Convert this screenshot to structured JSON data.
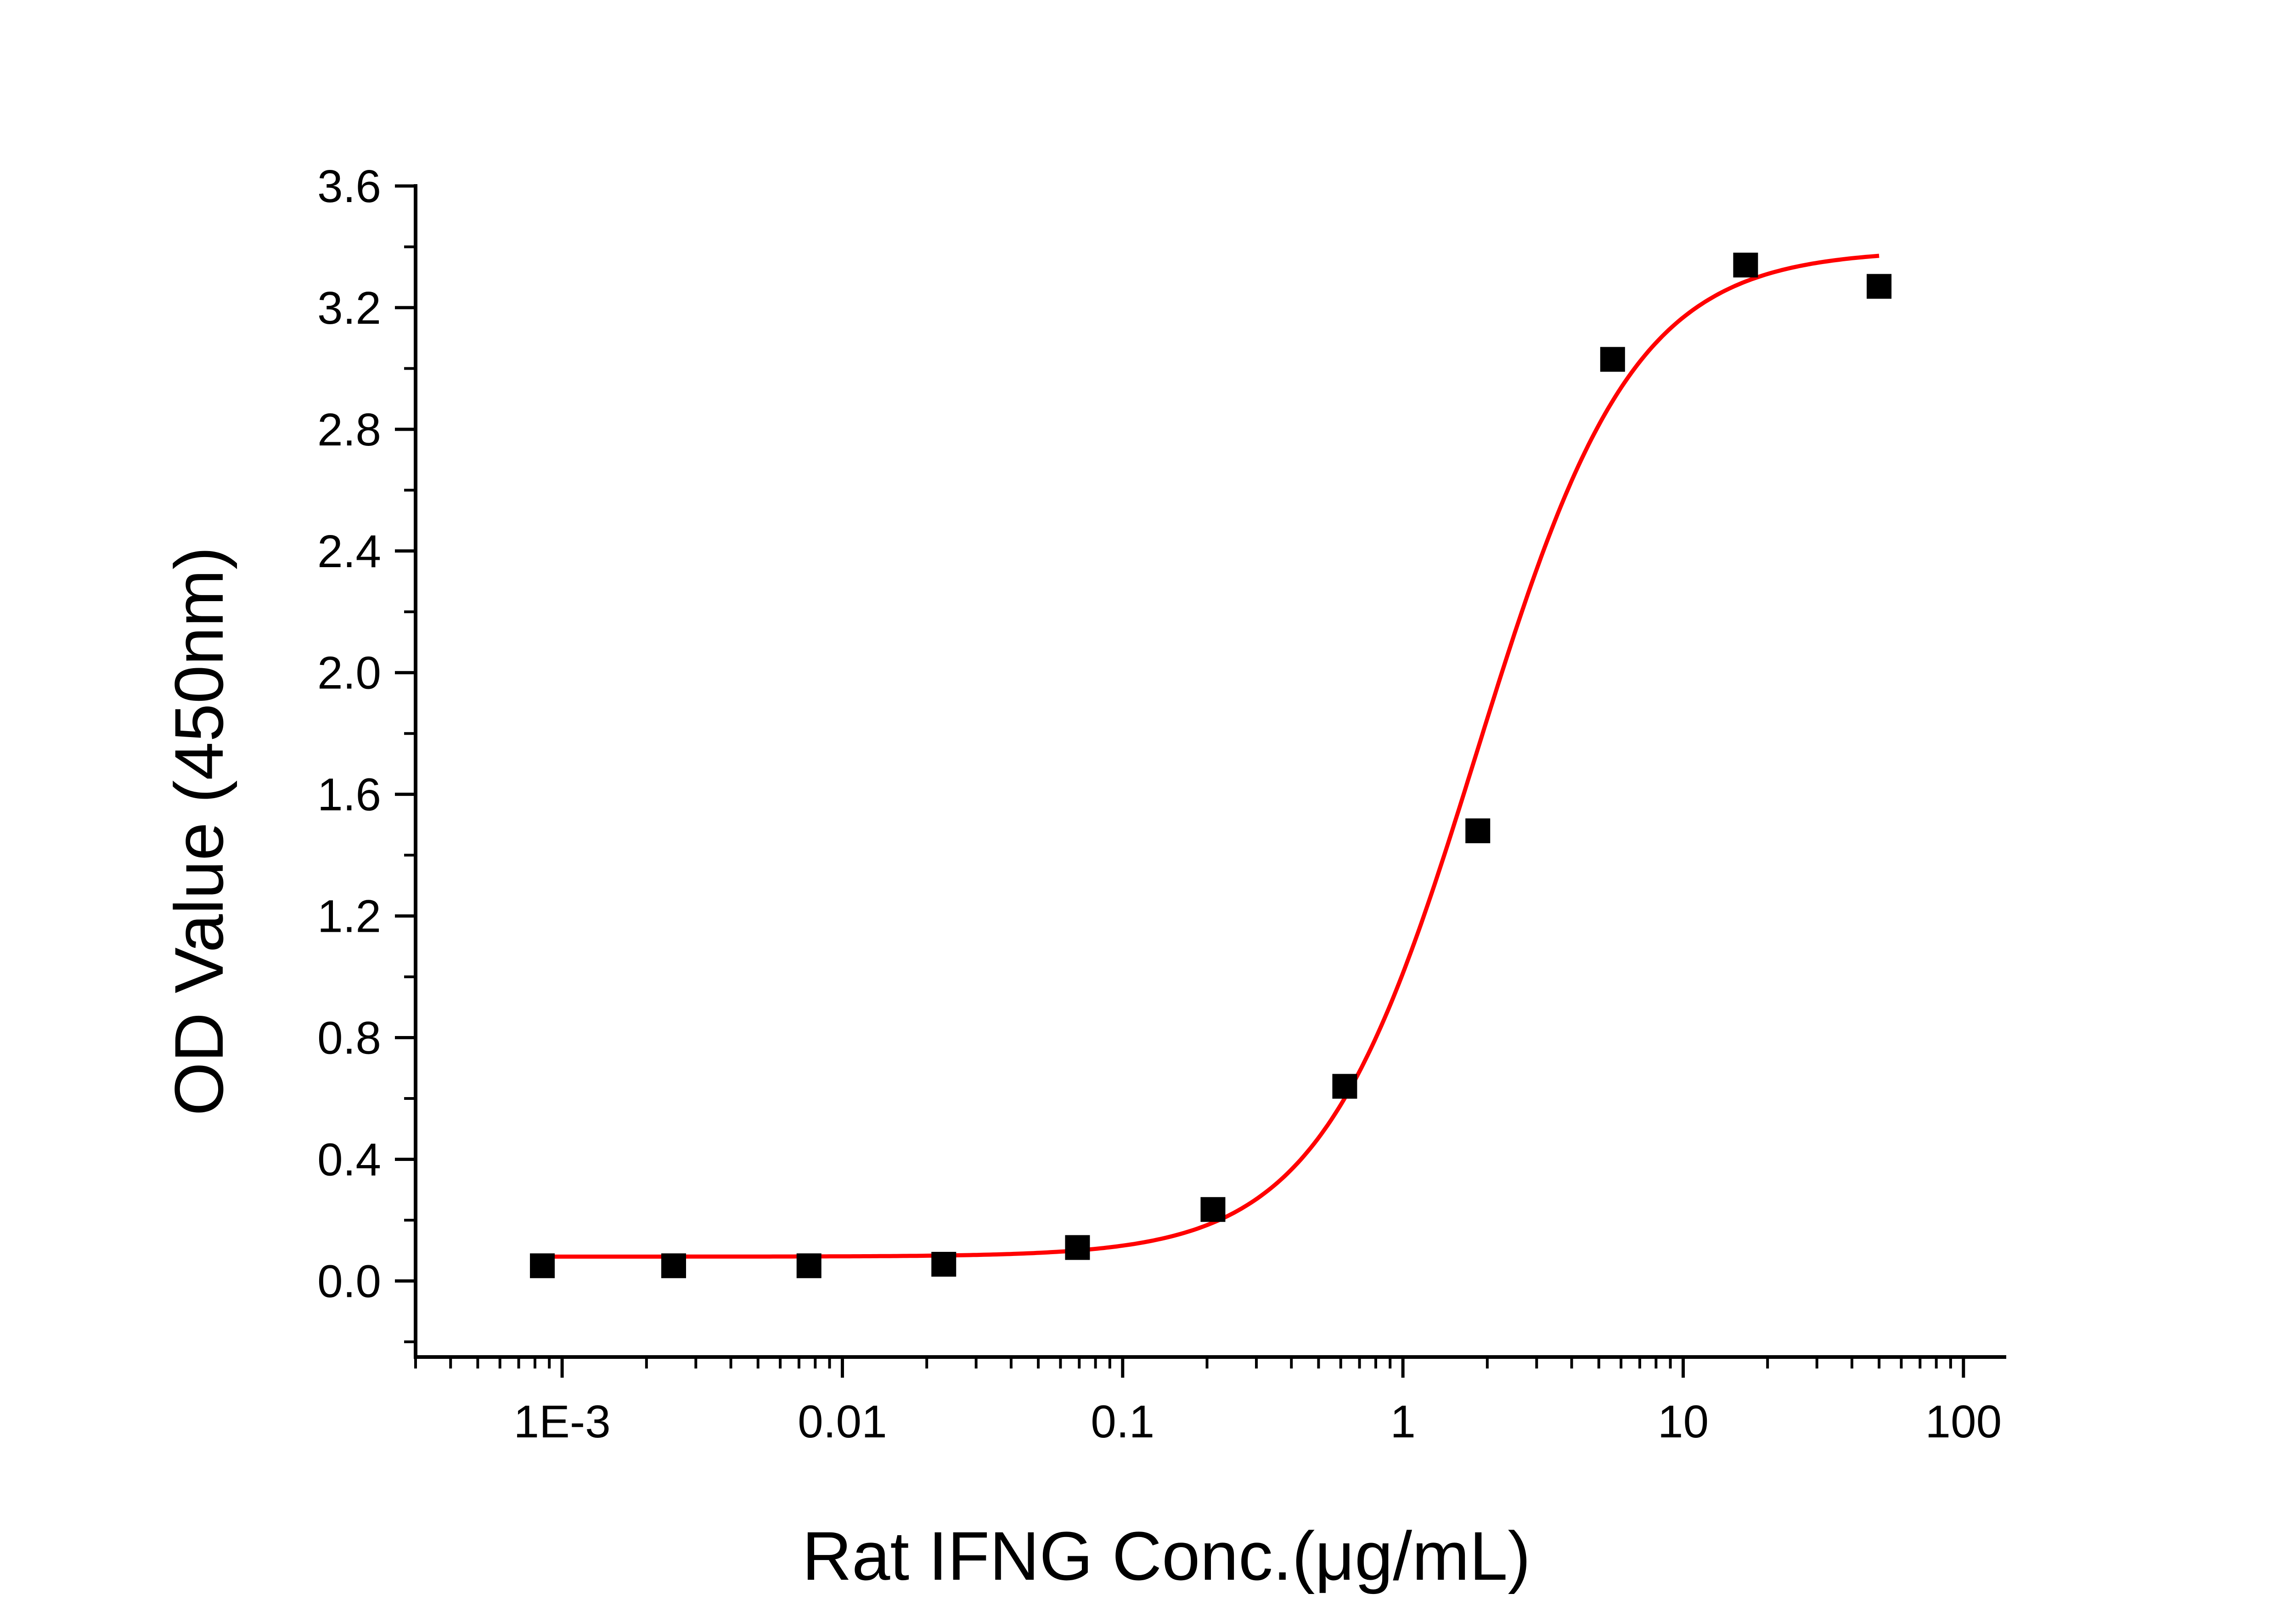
{
  "chart_data": {
    "type": "scatter",
    "title": "",
    "xlabel": "Rat IFNG Conc.(μg/mL)",
    "ylabel": "OD Value (450nm)",
    "x_scale": "log",
    "xlim": [
      0.0003,
      140
    ],
    "ylim": [
      -0.25,
      3.6
    ],
    "grid": false,
    "legend": "none",
    "x_ticks": [
      {
        "value": 0.001,
        "label": "1E-3"
      },
      {
        "value": 0.01,
        "label": "0.01"
      },
      {
        "value": 0.1,
        "label": "0.1"
      },
      {
        "value": 1,
        "label": "1"
      },
      {
        "value": 10,
        "label": "10"
      },
      {
        "value": 100,
        "label": "100"
      }
    ],
    "y_ticks": [
      {
        "value": 0.0,
        "label": "0.0"
      },
      {
        "value": 0.4,
        "label": "0.4"
      },
      {
        "value": 0.8,
        "label": "0.8"
      },
      {
        "value": 1.2,
        "label": "1.2"
      },
      {
        "value": 1.6,
        "label": "1.6"
      },
      {
        "value": 2.0,
        "label": "2.0"
      },
      {
        "value": 2.4,
        "label": "2.4"
      },
      {
        "value": 2.8,
        "label": "2.8"
      },
      {
        "value": 3.2,
        "label": "3.2"
      },
      {
        "value": 3.6,
        "label": "3.6"
      }
    ],
    "series": [
      {
        "kind": "points",
        "color": "#000000",
        "marker": "square",
        "x": [
          0.00085,
          0.0025,
          0.0076,
          0.023,
          0.069,
          0.21,
          0.62,
          1.85,
          5.6,
          16.7,
          50
        ],
        "y": [
          0.05,
          0.05,
          0.05,
          0.055,
          0.11,
          0.235,
          0.64,
          1.48,
          3.03,
          3.34,
          3.27
        ]
      },
      {
        "kind": "fit",
        "color": "#ff0000",
        "model": "4PL",
        "params": {
          "bottom": 0.08,
          "top": 3.39,
          "ec50": 1.83,
          "hill": 1.55
        },
        "x_range": [
          0.00085,
          50
        ]
      }
    ]
  }
}
